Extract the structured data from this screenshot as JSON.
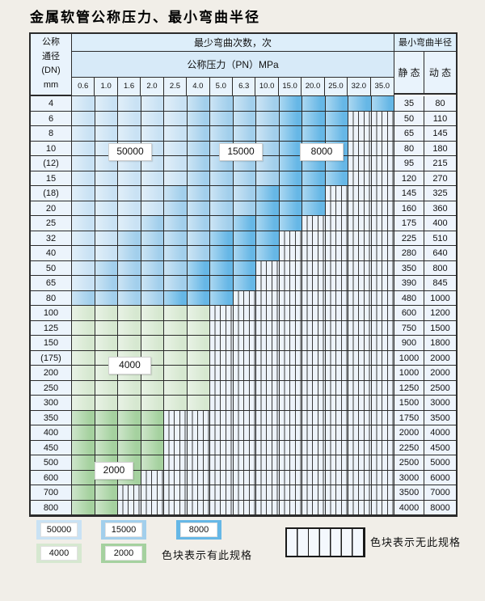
{
  "title": "金属软管公称压力、最小弯曲半径",
  "colors": {
    "blue_light": "#c9e2f4",
    "blue_mid": "#a2cfec",
    "blue_dark": "#66b7e6",
    "green_light": "#d6e8d0",
    "green_dark": "#a5d19f"
  },
  "table": {
    "corner_lines": [
      "公称",
      "通径",
      "(DN)",
      "mm"
    ],
    "bend_header": "最少弯曲次数，次",
    "pressure_header": "公称压力（PN）MPa",
    "radius_header": "最小弯曲半径",
    "static_label": "静 态",
    "dynamic_label": "动 态",
    "pressure_columns": [
      "0.6",
      "1.0",
      "1.6",
      "2.0",
      "2.5",
      "4.0",
      "5.0",
      "6.3",
      "10.0",
      "15.0",
      "20.0",
      "25.0",
      "32.0",
      "35.0"
    ],
    "overlay_labels": [
      "50000",
      "15000",
      "8000",
      "4000",
      "2000"
    ],
    "rows": [
      {
        "dn": "4",
        "static": "35",
        "dynamic": "80",
        "last": 13,
        "band": "blue"
      },
      {
        "dn": "6",
        "static": "50",
        "dynamic": "110",
        "last": 11,
        "band": "blue"
      },
      {
        "dn": "8",
        "static": "65",
        "dynamic": "145",
        "last": 11,
        "band": "blue"
      },
      {
        "dn": "10",
        "static": "80",
        "dynamic": "180",
        "last": 11,
        "band": "blue"
      },
      {
        "dn": "(12)",
        "static": "95",
        "dynamic": "215",
        "last": 11,
        "band": "blue"
      },
      {
        "dn": "15",
        "static": "120",
        "dynamic": "270",
        "last": 11,
        "band": "blue"
      },
      {
        "dn": "(18)",
        "static": "145",
        "dynamic": "325",
        "last": 10,
        "band": "blue"
      },
      {
        "dn": "20",
        "static": "160",
        "dynamic": "360",
        "last": 10,
        "band": "blue"
      },
      {
        "dn": "25",
        "static": "175",
        "dynamic": "400",
        "last": 9,
        "band": "blue"
      },
      {
        "dn": "32",
        "static": "225",
        "dynamic": "510",
        "last": 8,
        "band": "blue"
      },
      {
        "dn": "40",
        "static": "280",
        "dynamic": "640",
        "last": 8,
        "band": "blue"
      },
      {
        "dn": "50",
        "static": "350",
        "dynamic": "800",
        "last": 7,
        "band": "blue"
      },
      {
        "dn": "65",
        "static": "390",
        "dynamic": "845",
        "last": 7,
        "band": "blue"
      },
      {
        "dn": "80",
        "static": "480",
        "dynamic": "1000",
        "last": 6,
        "band": "blue"
      },
      {
        "dn": "100",
        "static": "600",
        "dynamic": "1200",
        "last": 5,
        "band": "green_light"
      },
      {
        "dn": "125",
        "static": "750",
        "dynamic": "1500",
        "last": 5,
        "band": "green_light"
      },
      {
        "dn": "150",
        "static": "900",
        "dynamic": "1800",
        "last": 5,
        "band": "green_light"
      },
      {
        "dn": "(175)",
        "static": "1000",
        "dynamic": "2000",
        "last": 5,
        "band": "green_light"
      },
      {
        "dn": "200",
        "static": "1000",
        "dynamic": "2000",
        "last": 5,
        "band": "green_light"
      },
      {
        "dn": "250",
        "static": "1250",
        "dynamic": "2500",
        "last": 5,
        "band": "green_light"
      },
      {
        "dn": "300",
        "static": "1500",
        "dynamic": "3000",
        "last": 5,
        "band": "green_light"
      },
      {
        "dn": "350",
        "static": "1750",
        "dynamic": "3500",
        "last": 3,
        "band": "green_dark"
      },
      {
        "dn": "400",
        "static": "2000",
        "dynamic": "4000",
        "last": 3,
        "band": "green_dark"
      },
      {
        "dn": "450",
        "static": "2250",
        "dynamic": "4500",
        "last": 3,
        "band": "green_dark"
      },
      {
        "dn": "500",
        "static": "2500",
        "dynamic": "5000",
        "last": 3,
        "band": "green_dark"
      },
      {
        "dn": "600",
        "static": "3000",
        "dynamic": "6000",
        "last": 2,
        "band": "green_dark"
      },
      {
        "dn": "700",
        "static": "3500",
        "dynamic": "7000",
        "last": 1,
        "band": "green_dark"
      },
      {
        "dn": "800",
        "static": "4000",
        "dynamic": "8000",
        "last": 1,
        "band": "green_dark"
      }
    ]
  },
  "legend": {
    "chips": [
      {
        "label": "50000",
        "color_key": "blue_light"
      },
      {
        "label": "15000",
        "color_key": "blue_mid"
      },
      {
        "label": "8000",
        "color_key": "blue_dark"
      },
      {
        "label": "4000",
        "color_key": "green_light"
      },
      {
        "label": "2000",
        "color_key": "green_dark"
      }
    ],
    "has_spec_text": "色块表示有此规格",
    "no_spec_text": "色块表示无此规格"
  }
}
